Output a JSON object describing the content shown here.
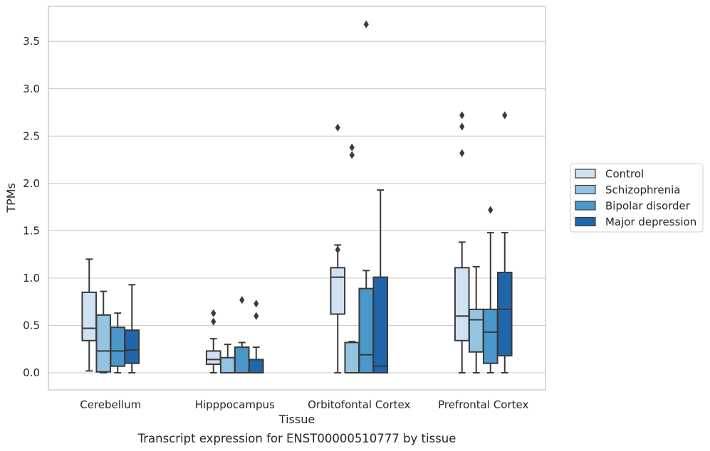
{
  "chart_data": {
    "type": "boxplot",
    "caption": "Transcript expression for ENST00000510777 by tissue",
    "xlabel": "Tissue",
    "ylabel": "TPMs",
    "ylim": [
      -0.18,
      3.87
    ],
    "yticks": [
      0.0,
      0.5,
      1.0,
      1.5,
      2.0,
      2.5,
      3.0,
      3.5
    ],
    "ytick_labels": [
      "0.0",
      "0.5",
      "1.0",
      "1.5",
      "2.0",
      "2.5",
      "3.0",
      "3.5"
    ],
    "grid": "horizontal",
    "legend_position": "right",
    "categories": [
      "Cerebellum",
      "Hipppocampus",
      "Orbitofontal Cortex",
      "Prefrontal Cortex"
    ],
    "series": [
      {
        "name": "Control",
        "color": "#d0e1f2",
        "boxes": [
          {
            "whislo": 0.02,
            "q1": 0.34,
            "med": 0.47,
            "q3": 0.85,
            "whishi": 1.2,
            "fliers": []
          },
          {
            "whislo": 0.0,
            "q1": 0.09,
            "med": 0.14,
            "q3": 0.23,
            "whishi": 0.36,
            "fliers": [
              0.54,
              0.63
            ]
          },
          {
            "whislo": 0.0,
            "q1": 0.62,
            "med": 1.01,
            "q3": 1.11,
            "whishi": 1.35,
            "fliers": [
              1.3,
              2.59
            ]
          },
          {
            "whislo": 0.0,
            "q1": 0.34,
            "med": 0.6,
            "q3": 1.11,
            "whishi": 1.38,
            "fliers": [
              2.32,
              2.6,
              2.72
            ]
          }
        ]
      },
      {
        "name": "Schizophrenia",
        "color": "#94c4df",
        "boxes": [
          {
            "whislo": 0.0,
            "q1": 0.01,
            "med": 0.23,
            "q3": 0.61,
            "whishi": 0.86,
            "fliers": []
          },
          {
            "whislo": 0.0,
            "q1": 0.0,
            "med": 0.0,
            "q3": 0.16,
            "whishi": 0.3,
            "fliers": []
          },
          {
            "whislo": 0.0,
            "q1": 0.0,
            "med": 0.0,
            "q3": 0.32,
            "whishi": 0.33,
            "fliers": [
              2.3,
              2.38
            ]
          },
          {
            "whislo": 0.0,
            "q1": 0.22,
            "med": 0.56,
            "q3": 0.67,
            "whishi": 1.12,
            "fliers": []
          }
        ]
      },
      {
        "name": "Bipolar disorder",
        "color": "#4a98c9",
        "boxes": [
          {
            "whislo": 0.0,
            "q1": 0.07,
            "med": 0.23,
            "q3": 0.48,
            "whishi": 0.63,
            "fliers": []
          },
          {
            "whislo": 0.0,
            "q1": 0.0,
            "med": 0.0,
            "q3": 0.27,
            "whishi": 0.32,
            "fliers": [
              0.77
            ]
          },
          {
            "whislo": 0.0,
            "q1": 0.0,
            "med": 0.19,
            "q3": 0.89,
            "whishi": 1.08,
            "fliers": [
              3.68
            ]
          },
          {
            "whislo": 0.0,
            "q1": 0.1,
            "med": 0.43,
            "q3": 0.67,
            "whishi": 1.48,
            "fliers": [
              1.72
            ]
          }
        ]
      },
      {
        "name": "Major depression",
        "color": "#2165ab",
        "boxes": [
          {
            "whislo": 0.0,
            "q1": 0.1,
            "med": 0.24,
            "q3": 0.45,
            "whishi": 0.93,
            "fliers": []
          },
          {
            "whislo": 0.0,
            "q1": 0.0,
            "med": 0.0,
            "q3": 0.14,
            "whishi": 0.27,
            "fliers": [
              0.6,
              0.73
            ]
          },
          {
            "whislo": 0.0,
            "q1": 0.0,
            "med": 0.07,
            "q3": 1.01,
            "whishi": 1.93,
            "fliers": []
          },
          {
            "whislo": 0.0,
            "q1": 0.18,
            "med": 0.67,
            "q3": 1.06,
            "whishi": 1.48,
            "fliers": [
              2.72
            ]
          }
        ]
      }
    ]
  }
}
